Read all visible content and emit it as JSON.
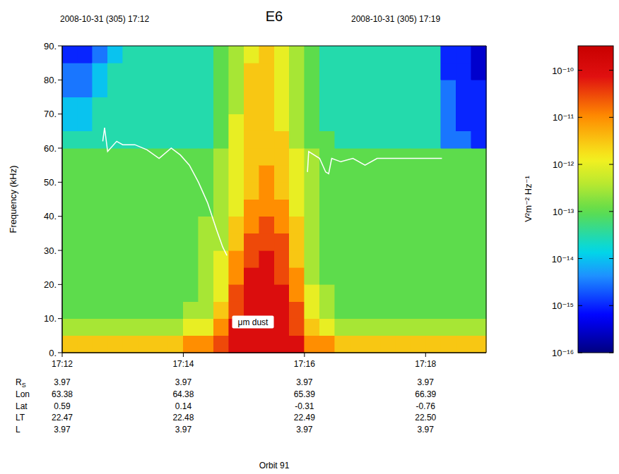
{
  "chart_data": {
    "type": "heatmap",
    "title": "E6",
    "header_left": "2008-10-31 (305) 17:12",
    "header_right": "2008-10-31 (305) 17:19",
    "ylabel": "Frequency (kHz)",
    "xlim": [
      12,
      19
    ],
    "xticks": [
      {
        "value": 12,
        "label": "17:12"
      },
      {
        "value": 14,
        "label": "17:14"
      },
      {
        "value": 16,
        "label": "17:16"
      },
      {
        "value": 18,
        "label": "17:18"
      }
    ],
    "ylim": [
      0,
      90
    ],
    "yticks": [
      {
        "value": 0,
        "label": "0."
      },
      {
        "value": 10,
        "label": "10."
      },
      {
        "value": 20,
        "label": "20."
      },
      {
        "value": 30,
        "label": "30."
      },
      {
        "value": 40,
        "label": "40."
      },
      {
        "value": 50,
        "label": "50."
      },
      {
        "value": 60,
        "label": "60."
      },
      {
        "value": 70,
        "label": "70."
      },
      {
        "value": 80,
        "label": "80."
      },
      {
        "value": 90,
        "label": "90."
      }
    ],
    "x_edges": [
      12,
      12.25,
      12.5,
      12.75,
      13,
      13.25,
      13.5,
      13.75,
      14,
      14.25,
      14.5,
      14.75,
      15,
      15.25,
      15.5,
      15.75,
      16,
      16.25,
      16.5,
      16.75,
      17,
      17.25,
      17.5,
      17.75,
      18,
      18.25,
      18.5,
      18.75,
      19
    ],
    "y_edges": [
      0,
      5,
      10,
      15,
      20,
      25,
      30,
      35,
      40,
      45,
      50,
      55,
      60,
      65,
      70,
      75,
      80,
      85,
      90
    ],
    "z": [
      [
        3e-12,
        3e-13,
        1e-13,
        1e-13,
        1e-13,
        1e-13,
        1e-13,
        1e-13,
        1e-13,
        1e-13,
        1e-13,
        1e-13,
        3e-14,
        1e-14,
        1e-14,
        3e-15,
        3e-15,
        1e-15
      ],
      [
        3e-12,
        3e-13,
        1e-13,
        1e-13,
        1e-13,
        1e-13,
        1e-13,
        1e-13,
        1e-13,
        1e-13,
        1e-13,
        1e-13,
        3e-14,
        1e-14,
        1e-14,
        3e-15,
        3e-15,
        1e-15
      ],
      [
        3e-12,
        3e-13,
        1e-13,
        1e-13,
        1e-13,
        1e-13,
        1e-13,
        1e-13,
        1e-13,
        1e-13,
        1e-13,
        1e-13,
        3e-14,
        3e-14,
        3e-14,
        1e-14,
        1e-14,
        3e-15
      ],
      [
        3e-12,
        3e-13,
        1e-13,
        1e-13,
        1e-13,
        1e-13,
        1e-13,
        1e-13,
        1e-13,
        1e-13,
        1e-13,
        1e-13,
        3e-14,
        3e-14,
        3e-14,
        3e-14,
        3e-14,
        1e-14
      ],
      [
        3e-12,
        3e-13,
        1e-13,
        1e-13,
        1e-13,
        1e-13,
        1e-13,
        1e-13,
        1e-13,
        1e-13,
        1e-13,
        1e-13,
        3e-14,
        3e-14,
        3e-14,
        3e-14,
        3e-14,
        3e-14
      ],
      [
        3e-12,
        3e-13,
        1e-13,
        1e-13,
        1e-13,
        1e-13,
        1e-13,
        1e-13,
        1e-13,
        1e-13,
        1e-13,
        1e-13,
        3e-14,
        3e-14,
        3e-14,
        3e-14,
        3e-14,
        3e-14
      ],
      [
        3e-12,
        3e-13,
        1e-13,
        1e-13,
        1e-13,
        1e-13,
        1e-13,
        1e-13,
        1e-13,
        1e-13,
        1e-13,
        1e-13,
        3e-14,
        3e-14,
        3e-14,
        3e-14,
        3e-14,
        3e-14
      ],
      [
        3e-12,
        3e-13,
        1e-13,
        1e-13,
        1e-13,
        1e-13,
        1e-13,
        1e-13,
        1e-13,
        1e-13,
        1e-13,
        1e-13,
        3e-14,
        3e-14,
        3e-14,
        3e-14,
        3e-14,
        3e-14
      ],
      [
        1e-11,
        1e-12,
        3e-13,
        1e-13,
        1e-13,
        1e-13,
        1e-13,
        1e-13,
        1e-13,
        1e-13,
        1e-13,
        1e-13,
        3e-14,
        3e-14,
        3e-14,
        3e-14,
        3e-14,
        3e-14
      ],
      [
        1e-11,
        1e-12,
        3e-13,
        3e-13,
        3e-13,
        3e-13,
        3e-13,
        3e-13,
        1e-13,
        1e-13,
        1e-13,
        1e-13,
        3e-14,
        3e-14,
        3e-14,
        3e-14,
        3e-14,
        3e-14
      ],
      [
        3e-11,
        1e-11,
        3e-12,
        1e-12,
        1e-12,
        1e-12,
        3e-13,
        3e-13,
        3e-13,
        3e-13,
        3e-13,
        3e-13,
        1e-13,
        1e-13,
        1e-13,
        1e-13,
        1e-13,
        1e-13
      ],
      [
        1e-10,
        1e-10,
        3e-11,
        3e-11,
        1e-11,
        1e-11,
        3e-12,
        3e-12,
        1e-12,
        1e-12,
        1e-12,
        1e-12,
        1e-12,
        1e-12,
        3e-13,
        3e-13,
        3e-13,
        3e-13
      ],
      [
        1e-10,
        1e-10,
        1e-10,
        1e-10,
        1e-10,
        3e-11,
        3e-11,
        1e-11,
        1e-11,
        3e-12,
        3e-12,
        3e-12,
        3e-12,
        3e-12,
        3e-12,
        3e-12,
        3e-12,
        1e-12
      ],
      [
        1e-10,
        1e-10,
        1e-10,
        1e-10,
        1e-10,
        1e-10,
        3e-11,
        3e-11,
        1e-11,
        1e-11,
        1e-11,
        3e-12,
        3e-12,
        3e-12,
        3e-12,
        3e-12,
        3e-12,
        3e-12
      ],
      [
        1e-10,
        1e-10,
        1e-10,
        1e-10,
        3e-11,
        3e-11,
        3e-11,
        1e-11,
        1e-11,
        3e-12,
        3e-12,
        3e-12,
        3e-12,
        1e-12,
        1e-12,
        1e-12,
        1e-12,
        1e-12
      ],
      [
        1e-10,
        3e-11,
        3e-11,
        1e-11,
        1e-11,
        3e-12,
        3e-12,
        3e-12,
        1e-12,
        1e-12,
        1e-12,
        1e-12,
        3e-13,
        3e-13,
        3e-13,
        3e-13,
        3e-13,
        3e-13
      ],
      [
        1e-11,
        3e-12,
        1e-12,
        1e-12,
        3e-13,
        3e-13,
        3e-13,
        3e-13,
        3e-13,
        3e-13,
        3e-13,
        3e-13,
        1e-13,
        1e-13,
        1e-13,
        1e-13,
        1e-13,
        1e-13
      ],
      [
        1e-11,
        1e-12,
        3e-13,
        3e-13,
        1e-13,
        1e-13,
        1e-13,
        1e-13,
        1e-13,
        1e-13,
        1e-13,
        1e-13,
        1e-13,
        3e-14,
        3e-14,
        3e-14,
        3e-14,
        3e-14
      ],
      [
        3e-12,
        3e-13,
        1e-13,
        1e-13,
        1e-13,
        1e-13,
        1e-13,
        1e-13,
        1e-13,
        1e-13,
        1e-13,
        1e-13,
        3e-14,
        3e-14,
        3e-14,
        3e-14,
        3e-14,
        3e-14
      ],
      [
        3e-12,
        3e-13,
        1e-13,
        1e-13,
        1e-13,
        1e-13,
        1e-13,
        1e-13,
        1e-13,
        1e-13,
        1e-13,
        1e-13,
        3e-14,
        3e-14,
        3e-14,
        3e-14,
        3e-14,
        3e-14
      ],
      [
        3e-12,
        3e-13,
        1e-13,
        1e-13,
        1e-13,
        1e-13,
        1e-13,
        1e-13,
        1e-13,
        1e-13,
        1e-13,
        1e-13,
        3e-14,
        3e-14,
        3e-14,
        3e-14,
        3e-14,
        3e-14
      ],
      [
        3e-12,
        3e-13,
        1e-13,
        1e-13,
        1e-13,
        1e-13,
        1e-13,
        1e-13,
        1e-13,
        1e-13,
        1e-13,
        1e-13,
        3e-14,
        3e-14,
        3e-14,
        3e-14,
        3e-14,
        3e-14
      ],
      [
        3e-12,
        3e-13,
        1e-13,
        1e-13,
        1e-13,
        1e-13,
        1e-13,
        1e-13,
        1e-13,
        1e-13,
        1e-13,
        1e-13,
        3e-14,
        3e-14,
        3e-14,
        3e-14,
        3e-14,
        3e-14
      ],
      [
        3e-12,
        3e-13,
        1e-13,
        1e-13,
        1e-13,
        1e-13,
        1e-13,
        1e-13,
        1e-13,
        1e-13,
        1e-13,
        1e-13,
        3e-14,
        3e-14,
        3e-14,
        3e-14,
        3e-14,
        3e-14
      ],
      [
        3e-12,
        3e-13,
        1e-13,
        1e-13,
        1e-13,
        1e-13,
        1e-13,
        1e-13,
        1e-13,
        1e-13,
        1e-13,
        1e-13,
        3e-14,
        3e-14,
        3e-14,
        3e-14,
        3e-14,
        3e-14
      ],
      [
        3e-12,
        3e-13,
        1e-13,
        1e-13,
        1e-13,
        1e-13,
        1e-13,
        1e-13,
        1e-13,
        1e-13,
        1e-13,
        1e-13,
        3e-15,
        3e-15,
        3e-15,
        3e-15,
        1e-15,
        1e-15
      ],
      [
        3e-12,
        3e-13,
        1e-13,
        1e-13,
        1e-13,
        1e-13,
        1e-13,
        1e-13,
        1e-13,
        1e-13,
        1e-13,
        1e-13,
        3e-15,
        1e-15,
        1e-15,
        1e-15,
        1e-15,
        1e-15
      ],
      [
        3e-12,
        3e-13,
        1e-13,
        1e-13,
        1e-13,
        1e-13,
        1e-13,
        1e-13,
        1e-13,
        1e-13,
        1e-13,
        1e-13,
        1e-15,
        1e-15,
        1e-15,
        1e-15,
        3e-16,
        3e-16
      ]
    ],
    "colorbar": {
      "range": [
        1e-16,
        3.3e-10
      ],
      "log": true,
      "label": "V²m⁻² Hz⁻¹",
      "ticks": [
        {
          "value": 1e-10,
          "label": "10⁻¹⁰"
        },
        {
          "value": 1e-11,
          "label": "10⁻¹¹"
        },
        {
          "value": 1e-12,
          "label": "10⁻¹²"
        },
        {
          "value": 1e-13,
          "label": "10⁻¹³"
        },
        {
          "value": 1e-14,
          "label": "10⁻¹⁴"
        },
        {
          "value": 1e-15,
          "label": "10⁻¹⁵"
        },
        {
          "value": 1e-16,
          "label": "10⁻¹⁶"
        }
      ]
    },
    "line": {
      "color": "#ffffff",
      "x": [
        12.67,
        12.7,
        12.75,
        12.9,
        13.0,
        13.2,
        13.4,
        13.6,
        13.8,
        13.95,
        14.1,
        14.25,
        14.4,
        14.55,
        14.65,
        14.72,
        15.4,
        16.05,
        16.07,
        16.25,
        16.35,
        16.4,
        16.45,
        16.6,
        16.8,
        17.0,
        17.2,
        17.5,
        17.8,
        18.0,
        18.27
      ],
      "values": [
        62,
        66,
        59,
        62,
        61,
        61,
        59.5,
        57,
        60,
        58,
        55,
        50,
        44,
        36,
        31,
        28.5,
        null,
        53,
        59,
        57,
        53,
        52.5,
        57,
        56,
        57,
        55,
        57,
        57,
        57,
        57,
        57
      ]
    },
    "annotation": {
      "text": "μm dust",
      "x": 15.15,
      "y": 9
    },
    "ephemeris": [
      {
        "label": "R",
        "sub": "S",
        "values": [
          "3.97",
          "3.97",
          "3.97",
          "3.97"
        ]
      },
      {
        "label": "Lon",
        "values": [
          "63.38",
          "64.38",
          "65.39",
          "66.39"
        ]
      },
      {
        "label": "Lat",
        "values": [
          "0.59",
          "0.14",
          "-0.31",
          "-0.76"
        ]
      },
      {
        "label": "LT",
        "values": [
          "22.47",
          "22.48",
          "22.49",
          "22.50"
        ]
      },
      {
        "label": "L",
        "values": [
          "3.97",
          "3.97",
          "3.97",
          "3.97"
        ]
      }
    ],
    "footer": "Orbit 91"
  }
}
